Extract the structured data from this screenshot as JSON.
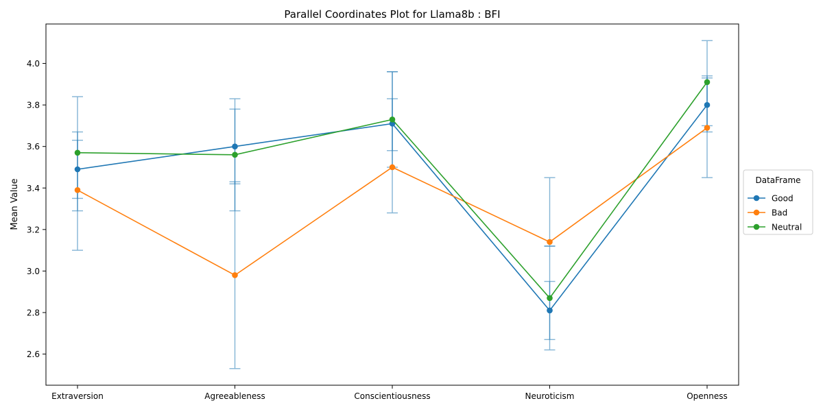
{
  "chart_data": {
    "type": "line",
    "title": "Parallel Coordinates Plot for Llama8b : BFI",
    "xlabel": "",
    "ylabel": "Mean Value",
    "categories": [
      "Extraversion",
      "Agreeableness",
      "Conscientiousness",
      "Neuroticism",
      "Openness"
    ],
    "ylim": [
      2.45,
      4.19
    ],
    "yticks": [
      2.6,
      2.8,
      3.0,
      3.2,
      3.4,
      3.6,
      3.8,
      4.0
    ],
    "ytick_labels": [
      "2.6",
      "2.8",
      "3.0",
      "3.2",
      "3.4",
      "3.6",
      "3.8",
      "4.0"
    ],
    "grid": false,
    "legend": {
      "title": "DataFrame",
      "placement": "right"
    },
    "series": [
      {
        "name": "Good",
        "color": "#1f77b4",
        "values": [
          3.49,
          3.6,
          3.71,
          2.81,
          3.8
        ],
        "error_low": [
          3.29,
          3.42,
          3.58,
          2.67,
          3.67
        ],
        "error_high": [
          3.67,
          3.78,
          3.83,
          2.95,
          3.93
        ]
      },
      {
        "name": "Bad",
        "color": "#ff7f0e",
        "values": [
          3.39,
          2.98,
          3.5,
          3.14,
          3.69
        ],
        "error_low": [
          3.1,
          2.53,
          3.28,
          3.12,
          3.45
        ],
        "error_high": [
          3.84,
          3.83,
          3.96,
          3.45,
          3.94
        ]
      },
      {
        "name": "Neutral",
        "color": "#2ca02c",
        "values": [
          3.57,
          3.56,
          3.73,
          2.87,
          3.91
        ],
        "error_low": [
          3.35,
          3.29,
          3.5,
          2.62,
          3.7
        ],
        "error_high": [
          3.63,
          3.43,
          3.96,
          3.12,
          4.11
        ]
      }
    ],
    "errorbar_color": "#1f77b4"
  }
}
